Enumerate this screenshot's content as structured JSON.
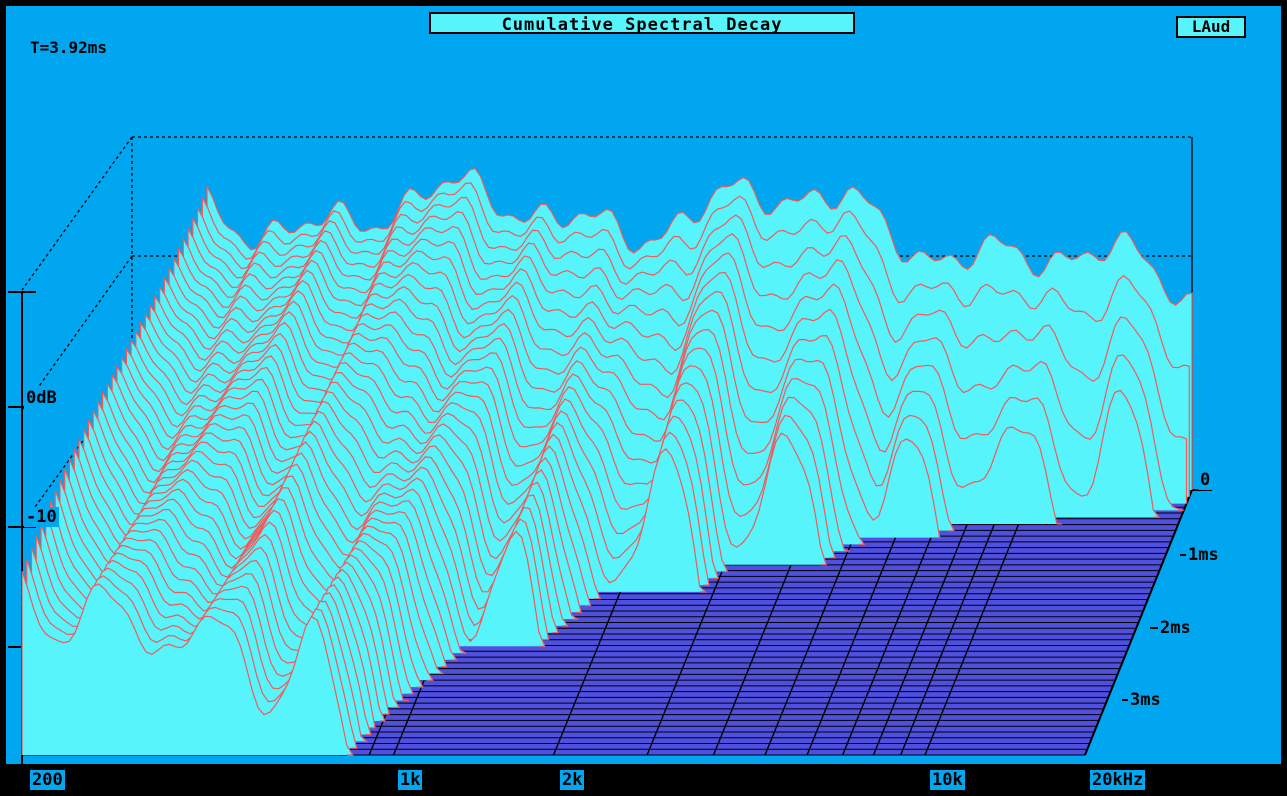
{
  "title": "Cumulative Spectral Decay",
  "badge": "LAud",
  "time_readout": "T=3.92ms",
  "colors": {
    "background": "#00a6f0",
    "surface": "#58f4fc",
    "trace": "#f05a5a",
    "floor": "#5050e0",
    "text": "#000000"
  },
  "chart_data": {
    "type": "waterfall",
    "title": "Cumulative Spectral Decay",
    "x_scale": "log",
    "x_range": [
      200,
      20000
    ],
    "x_tick_labels": [
      "200",
      "1k",
      "2k",
      "10k",
      "20kHz"
    ],
    "y_tick_labels": [
      "0dB",
      "-10"
    ],
    "z_tick_labels": [
      "0",
      "1ms",
      "2ms",
      "3ms"
    ],
    "time_range_ms": [
      0,
      3.92
    ],
    "slice_count": 40
  }
}
